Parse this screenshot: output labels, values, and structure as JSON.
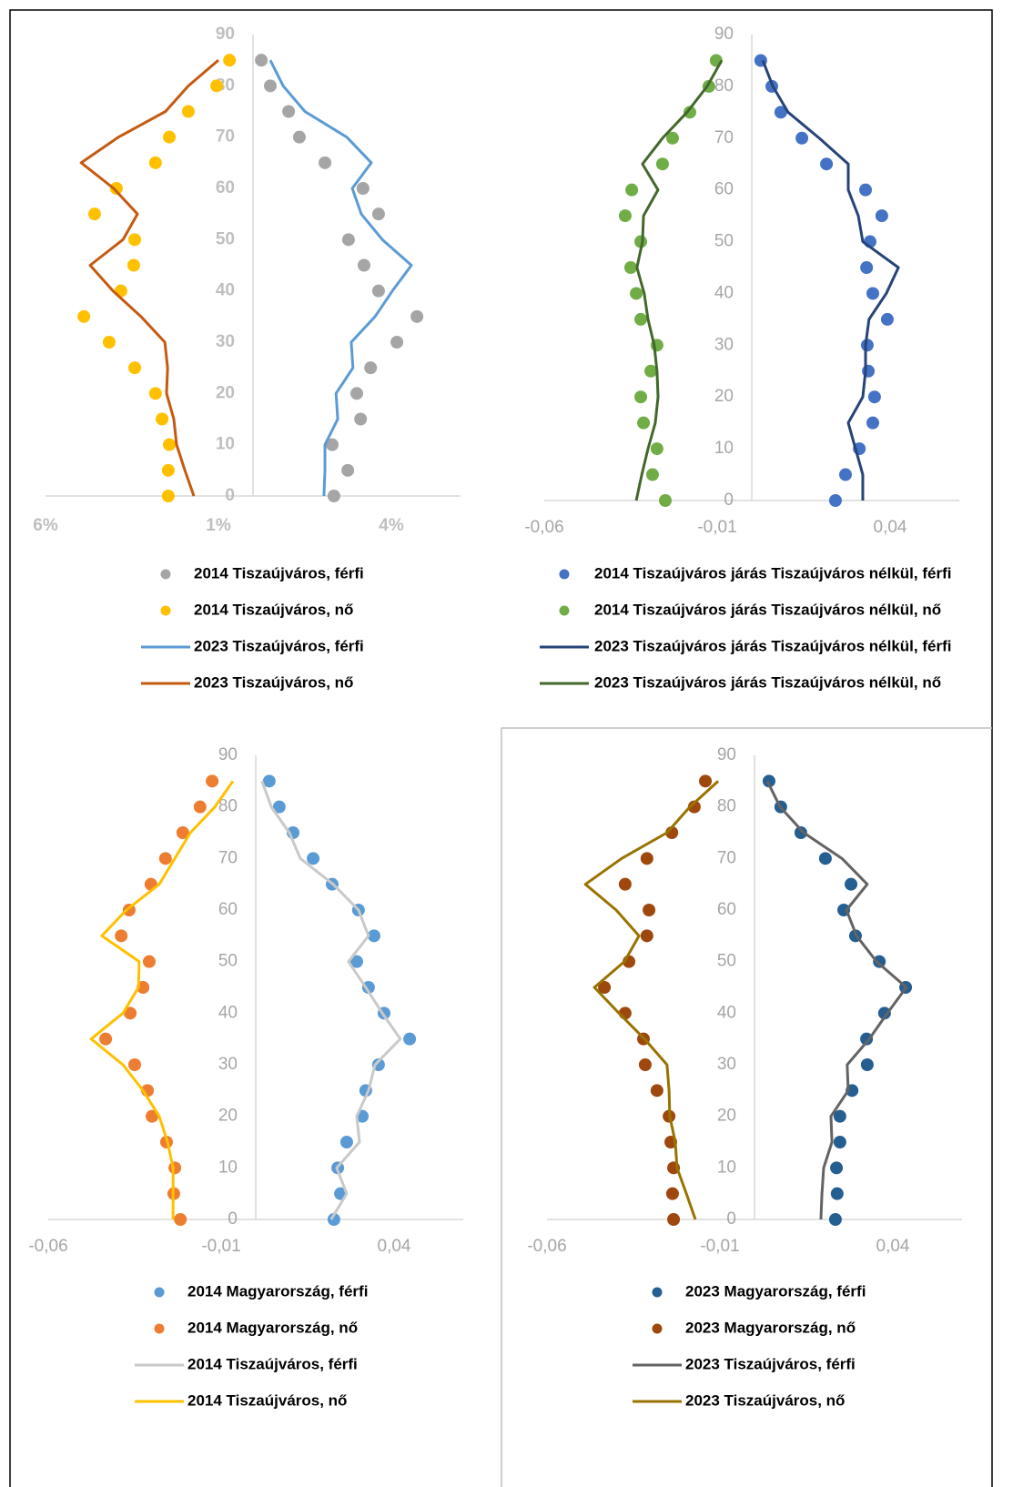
{
  "chart_data": [
    {
      "type": "scatter",
      "y": [
        0,
        5,
        10,
        15,
        20,
        25,
        30,
        35,
        40,
        45,
        50,
        55,
        60,
        65,
        70,
        75,
        80,
        85
      ],
      "xlim": [
        -0.06,
        0.06
      ],
      "xticks": [
        {
          "value": -0.06,
          "label": "6%"
        },
        {
          "value": -0.01,
          "label": "1%"
        },
        {
          "value": 0.04,
          "label": "4%"
        }
      ],
      "ylim": [
        0,
        90
      ],
      "yticks": [
        0,
        10,
        20,
        30,
        40,
        50,
        60,
        70,
        80,
        90
      ],
      "series": [
        {
          "name": "2014 Tiszaújváros, férfi",
          "style": "dot",
          "color": "#a5a5a5",
          "values": [
            0.0234,
            0.0274,
            0.0229,
            0.0311,
            0.03,
            0.034,
            0.0416,
            0.0474,
            0.0363,
            0.0321,
            0.0276,
            0.0363,
            0.0318,
            0.0208,
            0.0134,
            0.0103,
            0.005,
            0.0024
          ]
        },
        {
          "name": "2014 Tiszaújváros, nő",
          "style": "dot",
          "color": "#ffc000",
          "values": [
            -0.0245,
            -0.0245,
            -0.0242,
            -0.0263,
            -0.0282,
            -0.0342,
            -0.0416,
            -0.0489,
            -0.0382,
            -0.0345,
            -0.0342,
            -0.0458,
            -0.0395,
            -0.0282,
            -0.0242,
            -0.0187,
            -0.0105,
            -0.0068
          ]
        },
        {
          "name": "2023 Tiszaújváros, férfi",
          "style": "line",
          "color": "#5b9bd5",
          "values": [
            0.0205,
            0.0208,
            0.0208,
            0.0245,
            0.024,
            0.0289,
            0.0284,
            0.0353,
            0.0403,
            0.0458,
            0.0374,
            0.0313,
            0.0287,
            0.0342,
            0.0271,
            0.015,
            0.0087,
            0.005
          ]
        },
        {
          "name": "2023 Tiszaújváros, nő",
          "style": "line",
          "color": "#c55a11",
          "values": [
            -0.0171,
            -0.0197,
            -0.0221,
            -0.0229,
            -0.025,
            -0.0247,
            -0.0255,
            -0.0324,
            -0.0405,
            -0.0471,
            -0.0376,
            -0.0334,
            -0.0403,
            -0.0497,
            -0.0389,
            -0.0253,
            -0.0187,
            -0.01
          ]
        }
      ]
    },
    {
      "type": "scatter",
      "y": [
        0,
        5,
        10,
        15,
        20,
        25,
        30,
        35,
        40,
        45,
        50,
        55,
        60,
        65,
        70,
        75,
        80,
        85
      ],
      "xlim": [
        -0.06,
        0.06
      ],
      "xticks": [
        {
          "value": -0.06,
          "label": "-0,06"
        },
        {
          "value": -0.01,
          "label": "-0,01"
        },
        {
          "value": 0.04,
          "label": "0,04"
        }
      ],
      "ylim": [
        0,
        90
      ],
      "yticks": [
        0,
        10,
        20,
        30,
        40,
        50,
        60,
        70,
        80,
        90
      ],
      "series": [
        {
          "name": "2014 Tiszaújváros járás Tiszaújváros nélkül, férfi",
          "style": "dot",
          "color": "#4472c4",
          "values": [
            0.0242,
            0.0271,
            0.0311,
            0.035,
            0.0355,
            0.0337,
            0.0334,
            0.0392,
            0.035,
            0.0332,
            0.0342,
            0.0376,
            0.0329,
            0.0216,
            0.0145,
            0.0084,
            0.0058,
            0.0026
          ]
        },
        {
          "name": "2014 Tiszaújváros járás Tiszaújváros nélkül, nő",
          "style": "dot",
          "color": "#70ad47",
          "values": [
            -0.025,
            -0.0287,
            -0.0274,
            -0.0313,
            -0.0321,
            -0.0292,
            -0.0274,
            -0.0321,
            -0.0334,
            -0.035,
            -0.0321,
            -0.0366,
            -0.0347,
            -0.0258,
            -0.0229,
            -0.0179,
            -0.0124,
            -0.0103
          ]
        },
        {
          "name": "2023 Tiszaújváros járás Tiszaújváros nélkül, férfi",
          "style": "line",
          "color": "#264478",
          "values": [
            0.0321,
            0.0321,
            0.03,
            0.0279,
            0.0321,
            0.0329,
            0.0329,
            0.0339,
            0.0389,
            0.0424,
            0.0321,
            0.0308,
            0.0279,
            0.0279,
            0.0195,
            0.0105,
            0.0061,
            0.0032
          ]
        },
        {
          "name": "2023 Tiszaújváros járás Tiszaújváros nélkül, nő",
          "style": "line",
          "color": "#43682b",
          "values": [
            -0.0334,
            -0.0318,
            -0.03,
            -0.0279,
            -0.0271,
            -0.0274,
            -0.0282,
            -0.03,
            -0.0311,
            -0.0332,
            -0.0316,
            -0.0313,
            -0.0271,
            -0.0316,
            -0.0258,
            -0.0187,
            -0.0129,
            -0.0087
          ]
        }
      ]
    },
    {
      "type": "scatter",
      "y": [
        0,
        5,
        10,
        15,
        20,
        25,
        30,
        35,
        40,
        45,
        50,
        55,
        60,
        65,
        70,
        75,
        80,
        85
      ],
      "xlim": [
        -0.06,
        0.06
      ],
      "xticks": [
        {
          "value": -0.06,
          "label": "-0,06"
        },
        {
          "value": -0.01,
          "label": "-0,01"
        },
        {
          "value": 0.04,
          "label": "0,04"
        }
      ],
      "ylim": [
        0,
        90
      ],
      "yticks": [
        0,
        10,
        20,
        30,
        40,
        50,
        60,
        70,
        80,
        90
      ],
      "series": [
        {
          "name": "2014 Magyarország, férfi",
          "style": "dot",
          "color": "#5b9bd5",
          "values": [
            0.0226,
            0.0245,
            0.0237,
            0.0263,
            0.0308,
            0.0318,
            0.0355,
            0.0445,
            0.0371,
            0.0326,
            0.0292,
            0.0342,
            0.0297,
            0.0221,
            0.0166,
            0.0108,
            0.0068,
            0.0039
          ]
        },
        {
          "name": "2014 Magyarország, nő",
          "style": "dot",
          "color": "#ed7d31",
          "values": [
            -0.0218,
            -0.0237,
            -0.0234,
            -0.0258,
            -0.03,
            -0.0313,
            -0.035,
            -0.0434,
            -0.0363,
            -0.0326,
            -0.0308,
            -0.0389,
            -0.0366,
            -0.0303,
            -0.0261,
            -0.0211,
            -0.0161,
            -0.0126
          ]
        },
        {
          "name": "2014 Tiszaújváros, férfi",
          "style": "line",
          "color": "#c9c9c9",
          "values": [
            0.0218,
            0.0263,
            0.0234,
            0.03,
            0.0292,
            0.0326,
            0.0345,
            0.0418,
            0.0366,
            0.0318,
            0.0268,
            0.0326,
            0.0297,
            0.0224,
            0.0129,
            0.0097,
            0.0045,
            0.0018
          ]
        },
        {
          "name": "2014 Tiszaújváros, nő",
          "style": "line",
          "color": "#ffc000",
          "values": [
            -0.0239,
            -0.0239,
            -0.0239,
            -0.0255,
            -0.0279,
            -0.0326,
            -0.0384,
            -0.0476,
            -0.0384,
            -0.0339,
            -0.0337,
            -0.0445,
            -0.0374,
            -0.0279,
            -0.0234,
            -0.0189,
            -0.0118,
            -0.0066
          ]
        }
      ]
    },
    {
      "type": "scatter",
      "y": [
        0,
        5,
        10,
        15,
        20,
        25,
        30,
        35,
        40,
        45,
        50,
        55,
        60,
        65,
        70,
        75,
        80,
        85
      ],
      "xlim": [
        -0.06,
        0.06
      ],
      "xticks": [
        {
          "value": -0.06,
          "label": "-0,06"
        },
        {
          "value": -0.01,
          "label": "-0,01"
        },
        {
          "value": 0.04,
          "label": "0,04"
        }
      ],
      "ylim": [
        0,
        90
      ],
      "yticks": [
        0,
        10,
        20,
        30,
        40,
        50,
        60,
        70,
        80,
        90
      ],
      "series": [
        {
          "name": "2023 Magyarország, férfi",
          "style": "dot",
          "color": "#255e91",
          "values": [
            0.0234,
            0.0239,
            0.0237,
            0.0247,
            0.0247,
            0.0282,
            0.0326,
            0.0324,
            0.0376,
            0.0437,
            0.0361,
            0.0292,
            0.0258,
            0.0279,
            0.0205,
            0.0134,
            0.0076,
            0.0042
          ]
        },
        {
          "name": "2023 Magyarország, nő",
          "style": "dot",
          "color": "#9e480e",
          "values": [
            -0.0234,
            -0.0237,
            -0.0234,
            -0.0242,
            -0.0247,
            -0.0282,
            -0.0316,
            -0.0321,
            -0.0374,
            -0.0434,
            -0.0363,
            -0.0311,
            -0.0305,
            -0.0374,
            -0.0311,
            -0.0239,
            -0.0174,
            -0.0142
          ]
        },
        {
          "name": "2023 Tiszaújváros, férfi",
          "style": "line",
          "color": "#636363",
          "values": [
            0.0192,
            0.0195,
            0.02,
            0.0224,
            0.0221,
            0.0271,
            0.0268,
            0.0332,
            0.0384,
            0.0439,
            0.0353,
            0.0295,
            0.0266,
            0.0326,
            0.0253,
            0.0142,
            0.0074,
            0.0037
          ]
        },
        {
          "name": "2023 Tiszaújváros, nő",
          "style": "line",
          "color": "#997300",
          "values": [
            -0.0171,
            -0.0197,
            -0.0224,
            -0.0229,
            -0.0245,
            -0.0247,
            -0.0253,
            -0.0318,
            -0.0392,
            -0.0463,
            -0.0376,
            -0.0334,
            -0.04,
            -0.0489,
            -0.0384,
            -0.0253,
            -0.0187,
            -0.0105
          ]
        }
      ]
    }
  ]
}
